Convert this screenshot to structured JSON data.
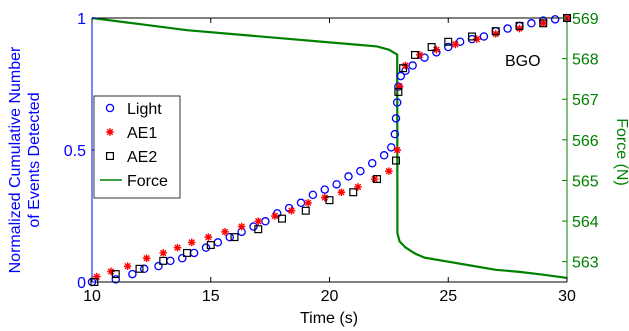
{
  "chart_data": {
    "type": "scatter",
    "annotation": "BGO",
    "xlabel": "Time (s)",
    "ylabel_left": "Normalized Cumulative Number of Events Detected",
    "ylabel_right": "Force (N)",
    "xlim": [
      10,
      30
    ],
    "ylim_left": [
      0,
      1
    ],
    "ylim_right": [
      562.5,
      569
    ],
    "x_ticks": [
      "10",
      "15",
      "20",
      "25",
      "30"
    ],
    "y_left_ticks": [
      "0",
      "0.5",
      "1"
    ],
    "y_right_ticks": [
      "563",
      "564",
      "565",
      "566",
      "567",
      "568",
      "569"
    ],
    "colors": {
      "light": "#0000ff",
      "ae1": "#ff0000",
      "ae2": "#000000",
      "force": "#008000",
      "left_axis": "#0000ff",
      "right_axis": "#008000"
    },
    "legend": {
      "position": "center-left",
      "entries": [
        {
          "name": "Light",
          "marker": "circle",
          "color": "#0000ff"
        },
        {
          "name": "AE1",
          "marker": "star",
          "color": "#ff0000"
        },
        {
          "name": "AE2",
          "marker": "square",
          "color": "#000000"
        },
        {
          "name": "Force",
          "marker": "line",
          "color": "#008000"
        }
      ]
    },
    "series": [
      {
        "name": "Light",
        "axis": "left",
        "x": [
          10.0,
          11.0,
          11.7,
          12.2,
          12.8,
          13.3,
          13.8,
          14.3,
          14.8,
          15.3,
          15.8,
          16.3,
          16.8,
          17.3,
          17.8,
          18.3,
          18.8,
          19.3,
          19.8,
          20.3,
          20.8,
          21.3,
          21.8,
          22.3,
          22.6,
          22.75,
          22.8,
          22.85,
          22.9,
          23.0,
          23.2,
          23.5,
          24.0,
          24.5,
          25.0,
          25.5,
          26.0,
          26.5,
          27.0,
          27.5,
          28.0,
          28.5,
          29.0,
          29.5,
          30.0
        ],
        "y": [
          0.0,
          0.01,
          0.03,
          0.05,
          0.06,
          0.08,
          0.09,
          0.11,
          0.13,
          0.15,
          0.17,
          0.19,
          0.21,
          0.23,
          0.26,
          0.28,
          0.3,
          0.33,
          0.35,
          0.37,
          0.4,
          0.42,
          0.45,
          0.48,
          0.51,
          0.56,
          0.62,
          0.68,
          0.74,
          0.78,
          0.8,
          0.82,
          0.85,
          0.87,
          0.89,
          0.91,
          0.92,
          0.93,
          0.95,
          0.96,
          0.97,
          0.98,
          0.99,
          0.995,
          1.0
        ]
      },
      {
        "name": "AE1",
        "axis": "left",
        "x": [
          10.2,
          10.8,
          11.5,
          12.3,
          13.0,
          13.6,
          14.2,
          14.9,
          15.6,
          16.3,
          17.0,
          17.7,
          18.4,
          19.1,
          19.8,
          20.5,
          21.2,
          21.9,
          22.5,
          22.85,
          22.95,
          23.2,
          23.8,
          24.5,
          25.3,
          26.2,
          27.0,
          28.0,
          29.0,
          30.0
        ],
        "y": [
          0.02,
          0.04,
          0.06,
          0.09,
          0.11,
          0.13,
          0.15,
          0.17,
          0.19,
          0.21,
          0.23,
          0.25,
          0.27,
          0.3,
          0.32,
          0.34,
          0.36,
          0.39,
          0.42,
          0.5,
          0.74,
          0.82,
          0.86,
          0.88,
          0.9,
          0.92,
          0.94,
          0.96,
          0.98,
          1.0
        ]
      },
      {
        "name": "AE2",
        "axis": "left",
        "x": [
          10.1,
          11.0,
          12.0,
          13.0,
          14.0,
          15.0,
          16.0,
          17.0,
          18.0,
          19.0,
          20.0,
          21.0,
          22.0,
          22.8,
          22.9,
          23.1,
          23.6,
          24.3,
          25.0,
          26.0,
          27.0,
          28.0,
          29.0,
          30.0
        ],
        "y": [
          0.0,
          0.03,
          0.05,
          0.08,
          0.11,
          0.14,
          0.17,
          0.2,
          0.24,
          0.27,
          0.31,
          0.34,
          0.39,
          0.46,
          0.72,
          0.81,
          0.86,
          0.89,
          0.91,
          0.93,
          0.95,
          0.97,
          0.98,
          1.0
        ]
      },
      {
        "name": "Force",
        "axis": "right",
        "x": [
          10,
          12,
          14,
          16,
          18,
          20,
          21,
          22,
          22.5,
          22.85,
          22.86,
          22.95,
          23.2,
          23.6,
          24,
          25,
          26,
          27,
          28,
          29,
          30
        ],
        "y": [
          569.0,
          568.85,
          568.7,
          568.6,
          568.5,
          568.4,
          568.35,
          568.3,
          568.22,
          568.1,
          563.7,
          563.5,
          563.35,
          563.2,
          563.1,
          563.0,
          562.9,
          562.8,
          562.75,
          562.68,
          562.6
        ]
      }
    ]
  }
}
